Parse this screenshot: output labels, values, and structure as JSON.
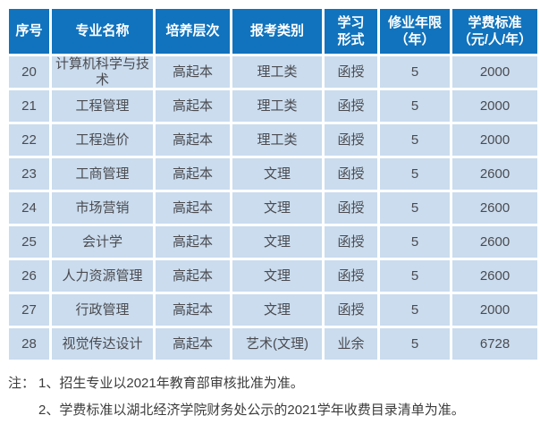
{
  "colors": {
    "header_bg": "#1173bd",
    "row_bg": "#cadcee",
    "header_text": "#ffffff",
    "cell_text": "#4b4b50",
    "note_text": "#3c3c3c"
  },
  "table": {
    "column_keys": [
      "no",
      "major",
      "level",
      "category",
      "form",
      "years",
      "tuition"
    ],
    "headers": [
      "序号",
      "专业名称",
      "培养层次",
      "报考类别",
      "学习\n形式",
      "修业年限\n（年）",
      "学费标准\n（元/人/年）"
    ],
    "rows": [
      [
        "20",
        "计算机科学与技术",
        "高起本",
        "理工类",
        "函授",
        "5",
        "2000"
      ],
      [
        "21",
        "工程管理",
        "高起本",
        "理工类",
        "函授",
        "5",
        "2000"
      ],
      [
        "22",
        "工程造价",
        "高起本",
        "理工类",
        "函授",
        "5",
        "2000"
      ],
      [
        "23",
        "工商管理",
        "高起本",
        "文理",
        "函授",
        "5",
        "2600"
      ],
      [
        "24",
        "市场营销",
        "高起本",
        "文理",
        "函授",
        "5",
        "2600"
      ],
      [
        "25",
        "会计学",
        "高起本",
        "文理",
        "函授",
        "5",
        "2600"
      ],
      [
        "26",
        "人力资源管理",
        "高起本",
        "文理",
        "函授",
        "5",
        "2600"
      ],
      [
        "27",
        "行政管理",
        "高起本",
        "文理",
        "函授",
        "5",
        "2000"
      ],
      [
        "28",
        "视觉传达设计",
        "高起本",
        "艺术(文理)",
        "业余",
        "5",
        "6728"
      ]
    ]
  },
  "notes": {
    "prefix": "注：",
    "items": [
      "1、招生专业以2021年教育部审核批准为准。",
      "2、学费标准以湖北经济学院财务处公示的2021学年收费目录清单为准。"
    ]
  }
}
